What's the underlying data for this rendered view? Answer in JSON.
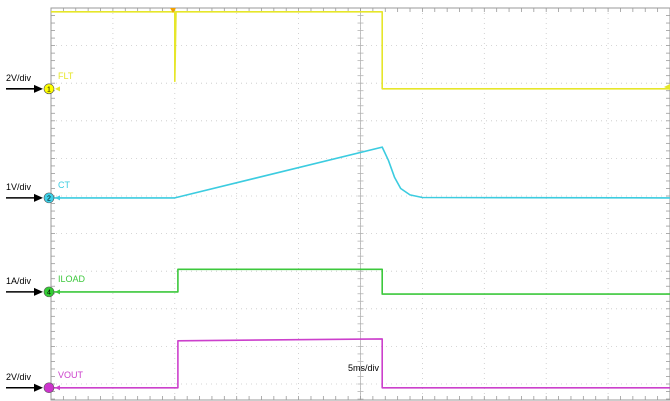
{
  "chart_data": {
    "type": "line",
    "x_range_divisions": [
      0,
      10
    ],
    "timebase": "5ms/div",
    "grid": true,
    "channels": [
      {
        "id": "ch1",
        "number": "1",
        "name": "FLT",
        "scale": "2V/div",
        "color": "#e6e62a",
        "marker_color": "#ffff00",
        "offset_div": 2.15,
        "points": [
          [
            0,
            2.05
          ],
          [
            2.0,
            2.05
          ],
          [
            2.0,
            0.2
          ],
          [
            2.02,
            2.05
          ],
          [
            5.35,
            2.05
          ],
          [
            5.35,
            0
          ],
          [
            10,
            0
          ]
        ]
      },
      {
        "id": "ch2",
        "number": "2",
        "name": "CT",
        "scale": "1V/div",
        "color": "#3ccce0",
        "marker_color": "#3cd0e8",
        "offset_div": 5.05,
        "points": [
          [
            0,
            0
          ],
          [
            2.0,
            0
          ],
          [
            5.35,
            1.35
          ],
          [
            5.45,
            1.0
          ],
          [
            5.55,
            0.55
          ],
          [
            5.65,
            0.25
          ],
          [
            5.8,
            0.08
          ],
          [
            6.0,
            0.01
          ],
          [
            10,
            0
          ]
        ]
      },
      {
        "id": "ch4",
        "number": "4",
        "name": "ILOAD",
        "scale": "1A/div",
        "color": "#3cc83c",
        "marker_color": "#33cc33",
        "offset_div": 7.55,
        "points": [
          [
            0,
            0
          ],
          [
            2.05,
            0
          ],
          [
            2.05,
            0.6
          ],
          [
            5.35,
            0.6
          ],
          [
            5.35,
            -0.06
          ],
          [
            10,
            -0.06
          ]
        ]
      },
      {
        "id": "ch3",
        "number": "",
        "name": "VOUT",
        "scale": "2V/div",
        "color": "#cc40cc",
        "marker_color": "#cc33cc",
        "offset_div": 10.1,
        "points": [
          [
            0,
            0
          ],
          [
            2.05,
            0
          ],
          [
            2.05,
            1.25
          ],
          [
            5.35,
            1.3
          ],
          [
            5.35,
            0
          ],
          [
            10,
            0
          ]
        ]
      }
    ]
  }
}
